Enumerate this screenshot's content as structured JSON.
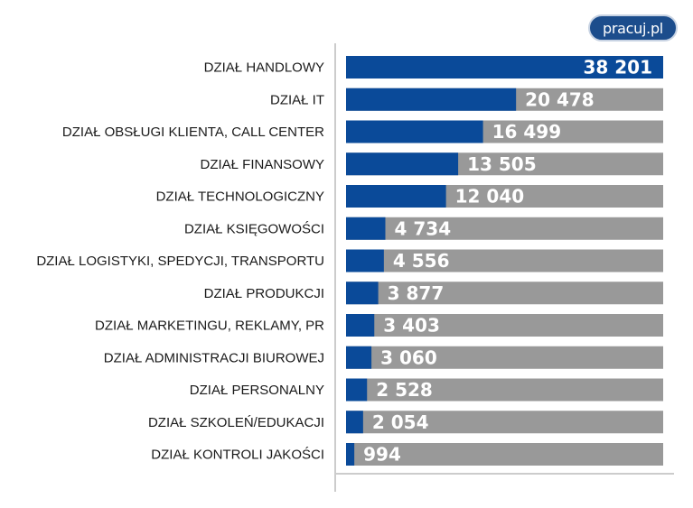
{
  "logo": {
    "text": "pracuj.pl"
  },
  "colors": {
    "bar_fill": "#0a4a99",
    "track": "#999999",
    "axis": "#cccccc",
    "value_text": "#ffffff",
    "logo_bg": "#1c4d8c"
  },
  "chart_data": {
    "type": "bar",
    "orientation": "horizontal",
    "categories": [
      "DZIAŁ HANDLOWY",
      "DZIAŁ IT",
      "DZIAŁ OBSŁUGI KLIENTA, CALL CENTER",
      "DZIAŁ FINANSOWY",
      "DZIAŁ TECHNOLOGICZNY",
      "DZIAŁ KSIĘGOWOŚCI",
      "DZIAŁ LOGISTYKI, SPEDYCJI, TRANSPORTU",
      "DZIAŁ PRODUKCJI",
      "DZIAŁ MARKETINGU, REKLAMY, PR",
      "DZIAŁ ADMINISTRACJI BIUROWEJ",
      "DZIAŁ PERSONALNY",
      "DZIAŁ SZKOLEŃ/EDUKACJI",
      "DZIAŁ KONTROLI JAKOŚCI"
    ],
    "values": [
      38201,
      20478,
      16499,
      13505,
      12040,
      4734,
      4556,
      3877,
      3403,
      3060,
      2528,
      2054,
      994
    ],
    "value_labels": [
      "38 201",
      "20 478",
      "16 499",
      "13 505",
      "12 040",
      "4 734",
      "4 556",
      "3 877",
      "3 403",
      "3 060",
      "2 528",
      "2 054",
      "994"
    ],
    "xlim": [
      0,
      38201
    ],
    "grid": false,
    "legend": "none"
  }
}
